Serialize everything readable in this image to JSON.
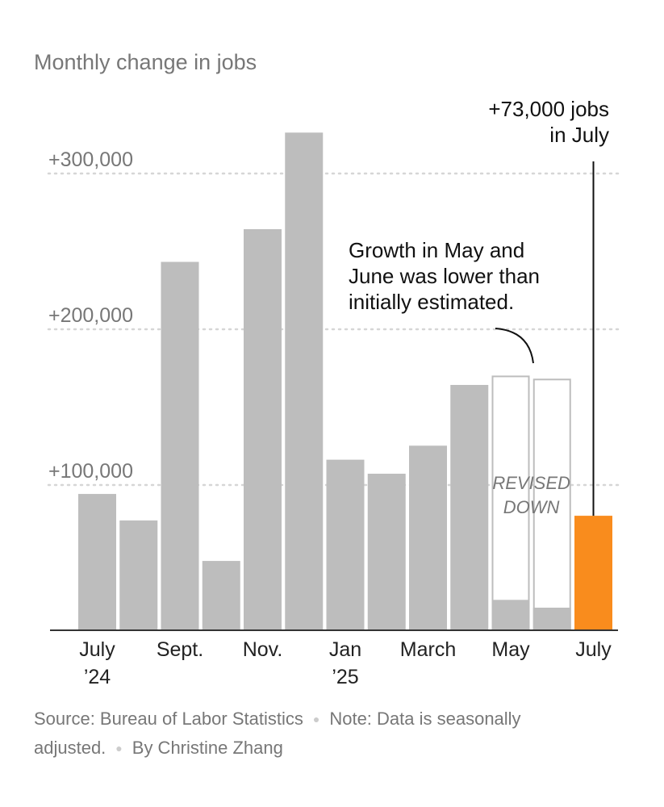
{
  "chart_data": {
    "type": "bar",
    "title": "Monthly change in jobs",
    "months": [
      "July 2024",
      "Aug. 2024",
      "Sept. 2024",
      "Oct. 2024",
      "Nov. 2024",
      "Dec. 2024",
      "Jan. 2025",
      "Feb. 2025",
      "March 2025",
      "April 2025",
      "May 2025",
      "June 2025",
      "July 2025"
    ],
    "values": [
      87000,
      70000,
      236000,
      44000,
      257000,
      319000,
      109000,
      100000,
      118000,
      157000,
      19000,
      14000,
      73000
    ],
    "initial_estimates": [
      null,
      null,
      null,
      null,
      null,
      null,
      null,
      null,
      null,
      null,
      163000,
      161000,
      null
    ],
    "x_tick_labels": [
      {
        "index": 0,
        "line1": "July",
        "line2": "’24"
      },
      {
        "index": 2,
        "line1": "Sept.",
        "line2": ""
      },
      {
        "index": 4,
        "line1": "Nov.",
        "line2": ""
      },
      {
        "index": 6,
        "line1": "Jan",
        "line2": "’25"
      },
      {
        "index": 8,
        "line1": "March",
        "line2": ""
      },
      {
        "index": 10,
        "line1": "May",
        "line2": ""
      },
      {
        "index": 12,
        "line1": "July",
        "line2": ""
      }
    ],
    "y_ticks": [
      {
        "value": 100000,
        "label": "+100,000"
      },
      {
        "value": 200000,
        "label": "+200,000"
      },
      {
        "value": 300000,
        "label": "+300,000"
      }
    ],
    "ylim": [
      0,
      320000
    ],
    "grid": true,
    "colors": {
      "bar": "#bdbdbd",
      "highlight": "#f98c1d",
      "revised_outline": "#bdbdbd",
      "text_dark": "#111111",
      "text_muted": "#777777",
      "gridline": "#d6d6d6"
    },
    "annotations": {
      "july_callout": [
        "+73,000 jobs",
        "in July"
      ],
      "revision_note": [
        "Growth in May and",
        "June was lower than",
        "initially estimated."
      ],
      "revised_label": [
        "REVISED",
        "DOWN"
      ]
    }
  },
  "footer": {
    "source": "Source: Bureau of Labor Statistics",
    "note": "Note: Data is seasonally adjusted.",
    "byline": "By Christine Zhang"
  }
}
